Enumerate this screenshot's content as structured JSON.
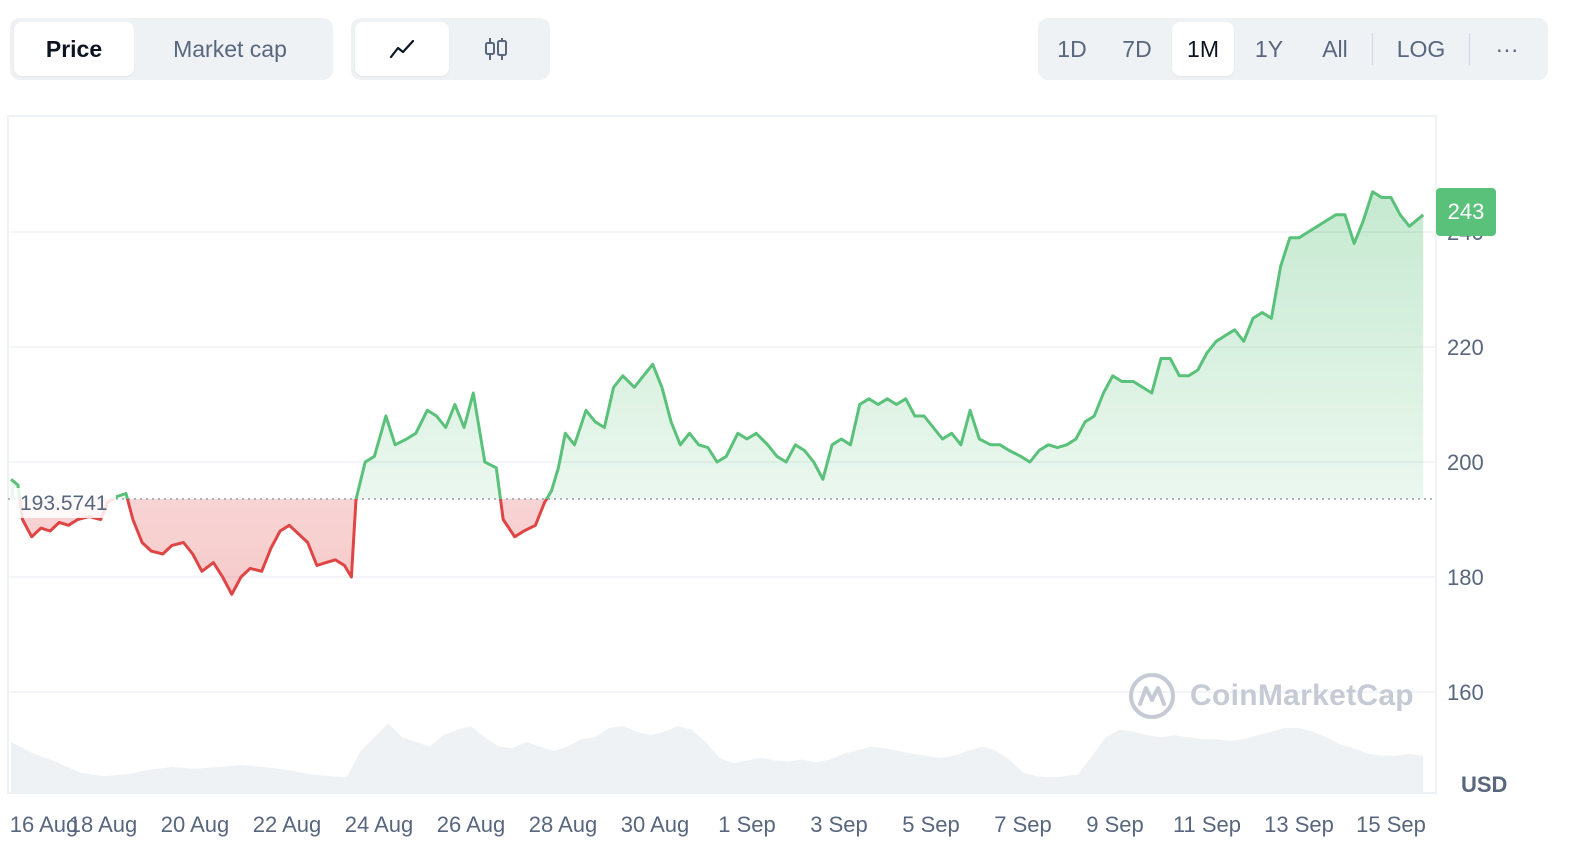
{
  "toolbar": {
    "metric_tabs": [
      {
        "label": "Price",
        "active": true
      },
      {
        "label": "Market cap",
        "active": false
      }
    ],
    "chart_type_buttons": [
      {
        "icon": "line-chart-icon",
        "active": true
      },
      {
        "icon": "candlestick-icon",
        "active": false
      }
    ],
    "ranges": [
      {
        "label": "1D",
        "active": false
      },
      {
        "label": "7D",
        "active": false
      },
      {
        "label": "1M",
        "active": true
      },
      {
        "label": "1Y",
        "active": false
      },
      {
        "label": "All",
        "active": false
      }
    ],
    "log_label": "LOG",
    "more_label": "···"
  },
  "watermark": {
    "text": "CoinMarketCap",
    "icon": "coinmarketcap-logo-icon"
  },
  "chart_data": {
    "type": "area",
    "baseline": {
      "value": 193.5741,
      "label": "193.5741"
    },
    "current_price": {
      "value": 243,
      "label": "243"
    },
    "currency_label": "USD",
    "y_ticks": [
      {
        "value": 240,
        "label": "240"
      },
      {
        "value": 220,
        "label": "220"
      },
      {
        "value": 200,
        "label": "200"
      },
      {
        "value": 180,
        "label": "180"
      },
      {
        "value": 160,
        "label": "160"
      }
    ],
    "x_ticks": [
      {
        "day": 0,
        "label": "16 Aug"
      },
      {
        "day": 2,
        "label": "18 Aug"
      },
      {
        "day": 4,
        "label": "20 Aug"
      },
      {
        "day": 6,
        "label": "22 Aug"
      },
      {
        "day": 8,
        "label": "24 Aug"
      },
      {
        "day": 10,
        "label": "26 Aug"
      },
      {
        "day": 12,
        "label": "28 Aug"
      },
      {
        "day": 14,
        "label": "30 Aug"
      },
      {
        "day": 16,
        "label": "1 Sep"
      },
      {
        "day": 18,
        "label": "3 Sep"
      },
      {
        "day": 20,
        "label": "5 Sep"
      },
      {
        "day": 22,
        "label": "7 Sep"
      },
      {
        "day": 24,
        "label": "9 Sep"
      },
      {
        "day": 26,
        "label": "11 Sep"
      },
      {
        "day": 28,
        "label": "13 Sep"
      },
      {
        "day": 30,
        "label": "15 Sep"
      }
    ],
    "colors": {
      "up": "#5ac17a",
      "down": "#e04545",
      "grid": "#eff2f5",
      "volume": "#eff2f5"
    },
    "series": [
      {
        "values": [
          [
            0.0,
            197
          ],
          [
            0.15,
            196
          ],
          [
            0.25,
            190
          ],
          [
            0.45,
            187
          ],
          [
            0.65,
            188.5
          ],
          [
            0.85,
            188
          ],
          [
            1.05,
            189.5
          ],
          [
            1.25,
            189
          ],
          [
            1.45,
            190
          ],
          [
            1.7,
            190.5
          ],
          [
            1.95,
            190
          ],
          [
            2.1,
            193
          ],
          [
            2.3,
            194
          ],
          [
            2.5,
            194.5
          ],
          [
            2.65,
            190
          ],
          [
            2.85,
            186
          ],
          [
            3.05,
            184.5
          ],
          [
            3.3,
            184
          ],
          [
            3.5,
            185.5
          ],
          [
            3.75,
            186
          ],
          [
            3.95,
            184
          ],
          [
            4.15,
            181
          ],
          [
            4.4,
            182.5
          ],
          [
            4.6,
            180
          ],
          [
            4.8,
            177
          ],
          [
            5.0,
            180
          ],
          [
            5.2,
            181.5
          ],
          [
            5.45,
            181
          ],
          [
            5.65,
            185
          ],
          [
            5.85,
            188
          ],
          [
            6.05,
            189
          ],
          [
            6.25,
            187.5
          ],
          [
            6.45,
            186
          ],
          [
            6.65,
            182
          ],
          [
            6.85,
            182.5
          ],
          [
            7.05,
            183
          ],
          [
            7.25,
            182
          ],
          [
            7.4,
            180
          ],
          [
            7.5,
            193.5
          ],
          [
            7.7,
            200
          ],
          [
            7.9,
            201
          ],
          [
            8.15,
            208
          ],
          [
            8.35,
            203
          ],
          [
            8.6,
            204
          ],
          [
            8.8,
            205
          ],
          [
            9.05,
            209
          ],
          [
            9.25,
            208
          ],
          [
            9.45,
            206
          ],
          [
            9.65,
            210
          ],
          [
            9.85,
            206
          ],
          [
            10.05,
            212
          ],
          [
            10.3,
            200
          ],
          [
            10.55,
            199
          ],
          [
            10.7,
            190
          ],
          [
            10.95,
            187
          ],
          [
            11.15,
            188
          ],
          [
            11.4,
            189
          ],
          [
            11.6,
            193
          ],
          [
            11.75,
            195
          ],
          [
            11.9,
            199
          ],
          [
            12.05,
            205
          ],
          [
            12.25,
            203
          ],
          [
            12.5,
            209
          ],
          [
            12.7,
            207
          ],
          [
            12.9,
            206
          ],
          [
            13.1,
            213
          ],
          [
            13.3,
            215
          ],
          [
            13.55,
            213
          ],
          [
            13.75,
            215
          ],
          [
            13.95,
            217
          ],
          [
            14.15,
            213
          ],
          [
            14.35,
            207
          ],
          [
            14.55,
            203
          ],
          [
            14.75,
            205
          ],
          [
            14.95,
            203
          ],
          [
            15.15,
            202.5
          ],
          [
            15.35,
            200
          ],
          [
            15.55,
            201
          ],
          [
            15.8,
            205
          ],
          [
            16.0,
            204
          ],
          [
            16.2,
            205
          ],
          [
            16.45,
            203
          ],
          [
            16.65,
            201
          ],
          [
            16.85,
            200
          ],
          [
            17.05,
            203
          ],
          [
            17.25,
            202
          ],
          [
            17.45,
            200
          ],
          [
            17.65,
            197
          ],
          [
            17.85,
            203
          ],
          [
            18.05,
            204
          ],
          [
            18.25,
            203
          ],
          [
            18.45,
            210
          ],
          [
            18.65,
            211
          ],
          [
            18.85,
            210
          ],
          [
            19.05,
            211
          ],
          [
            19.25,
            210
          ],
          [
            19.45,
            211
          ],
          [
            19.65,
            208
          ],
          [
            19.85,
            208
          ],
          [
            20.05,
            206
          ],
          [
            20.25,
            204
          ],
          [
            20.45,
            205
          ],
          [
            20.65,
            203
          ],
          [
            20.85,
            209
          ],
          [
            21.05,
            204
          ],
          [
            21.3,
            203
          ],
          [
            21.5,
            203
          ],
          [
            21.7,
            202
          ],
          [
            21.95,
            201
          ],
          [
            22.15,
            200
          ],
          [
            22.35,
            202
          ],
          [
            22.55,
            203
          ],
          [
            22.75,
            202.5
          ],
          [
            22.95,
            203
          ],
          [
            23.15,
            204
          ],
          [
            23.35,
            207
          ],
          [
            23.55,
            208
          ],
          [
            23.75,
            212
          ],
          [
            23.95,
            215
          ],
          [
            24.15,
            214
          ],
          [
            24.4,
            214
          ],
          [
            24.6,
            213
          ],
          [
            24.8,
            212
          ],
          [
            25.0,
            218
          ],
          [
            25.2,
            218
          ],
          [
            25.4,
            215
          ],
          [
            25.6,
            215
          ],
          [
            25.8,
            216
          ],
          [
            26.0,
            219
          ],
          [
            26.2,
            221
          ],
          [
            26.4,
            222
          ],
          [
            26.6,
            223
          ],
          [
            26.8,
            221
          ],
          [
            27.0,
            225
          ],
          [
            27.2,
            226
          ],
          [
            27.4,
            225
          ],
          [
            27.6,
            234
          ],
          [
            27.8,
            239
          ],
          [
            28.0,
            239
          ],
          [
            28.2,
            240
          ],
          [
            28.4,
            241
          ],
          [
            28.6,
            242
          ],
          [
            28.8,
            243
          ],
          [
            29.0,
            243
          ],
          [
            29.2,
            238
          ],
          [
            29.4,
            242
          ],
          [
            29.6,
            247
          ],
          [
            29.8,
            246
          ],
          [
            30.0,
            246
          ],
          [
            30.2,
            243
          ],
          [
            30.4,
            241
          ],
          [
            30.7,
            243
          ]
        ]
      }
    ],
    "volume": [
      [
        0.0,
        0.55
      ],
      [
        0.5,
        0.42
      ],
      [
        1.0,
        0.33
      ],
      [
        1.5,
        0.22
      ],
      [
        2.0,
        0.18
      ],
      [
        2.5,
        0.2
      ],
      [
        3.0,
        0.25
      ],
      [
        3.5,
        0.28
      ],
      [
        4.0,
        0.26
      ],
      [
        4.5,
        0.28
      ],
      [
        5.0,
        0.3
      ],
      [
        5.5,
        0.28
      ],
      [
        6.0,
        0.25
      ],
      [
        6.5,
        0.2
      ],
      [
        7.0,
        0.18
      ],
      [
        7.3,
        0.17
      ],
      [
        7.6,
        0.45
      ],
      [
        7.9,
        0.6
      ],
      [
        8.2,
        0.75
      ],
      [
        8.5,
        0.6
      ],
      [
        8.8,
        0.55
      ],
      [
        9.1,
        0.5
      ],
      [
        9.4,
        0.62
      ],
      [
        9.7,
        0.68
      ],
      [
        10.0,
        0.72
      ],
      [
        10.3,
        0.6
      ],
      [
        10.6,
        0.5
      ],
      [
        10.9,
        0.48
      ],
      [
        11.2,
        0.55
      ],
      [
        11.5,
        0.5
      ],
      [
        11.8,
        0.45
      ],
      [
        12.1,
        0.5
      ],
      [
        12.4,
        0.58
      ],
      [
        12.7,
        0.6
      ],
      [
        13.0,
        0.7
      ],
      [
        13.3,
        0.72
      ],
      [
        13.6,
        0.66
      ],
      [
        13.9,
        0.62
      ],
      [
        14.2,
        0.66
      ],
      [
        14.5,
        0.72
      ],
      [
        14.8,
        0.68
      ],
      [
        15.1,
        0.55
      ],
      [
        15.4,
        0.38
      ],
      [
        15.7,
        0.32
      ],
      [
        16.0,
        0.35
      ],
      [
        16.3,
        0.38
      ],
      [
        16.6,
        0.35
      ],
      [
        16.9,
        0.34
      ],
      [
        17.2,
        0.36
      ],
      [
        17.5,
        0.33
      ],
      [
        17.8,
        0.36
      ],
      [
        18.1,
        0.42
      ],
      [
        18.4,
        0.46
      ],
      [
        18.7,
        0.5
      ],
      [
        19.0,
        0.48
      ],
      [
        19.3,
        0.45
      ],
      [
        19.6,
        0.42
      ],
      [
        19.9,
        0.4
      ],
      [
        20.2,
        0.38
      ],
      [
        20.5,
        0.4
      ],
      [
        20.8,
        0.45
      ],
      [
        21.1,
        0.5
      ],
      [
        21.4,
        0.46
      ],
      [
        21.7,
        0.36
      ],
      [
        22.0,
        0.22
      ],
      [
        22.3,
        0.18
      ],
      [
        22.6,
        0.17
      ],
      [
        22.9,
        0.18
      ],
      [
        23.2,
        0.2
      ],
      [
        23.5,
        0.4
      ],
      [
        23.8,
        0.6
      ],
      [
        24.1,
        0.68
      ],
      [
        24.4,
        0.66
      ],
      [
        24.7,
        0.62
      ],
      [
        25.0,
        0.6
      ],
      [
        25.3,
        0.62
      ],
      [
        25.6,
        0.6
      ],
      [
        25.9,
        0.58
      ],
      [
        26.2,
        0.58
      ],
      [
        26.5,
        0.56
      ],
      [
        26.8,
        0.58
      ],
      [
        27.1,
        0.62
      ],
      [
        27.4,
        0.66
      ],
      [
        27.7,
        0.7
      ],
      [
        28.0,
        0.7
      ],
      [
        28.3,
        0.66
      ],
      [
        28.6,
        0.6
      ],
      [
        28.9,
        0.52
      ],
      [
        29.2,
        0.48
      ],
      [
        29.5,
        0.42
      ],
      [
        29.8,
        0.4
      ],
      [
        30.1,
        0.4
      ],
      [
        30.4,
        0.42
      ],
      [
        30.7,
        0.4
      ]
    ]
  }
}
